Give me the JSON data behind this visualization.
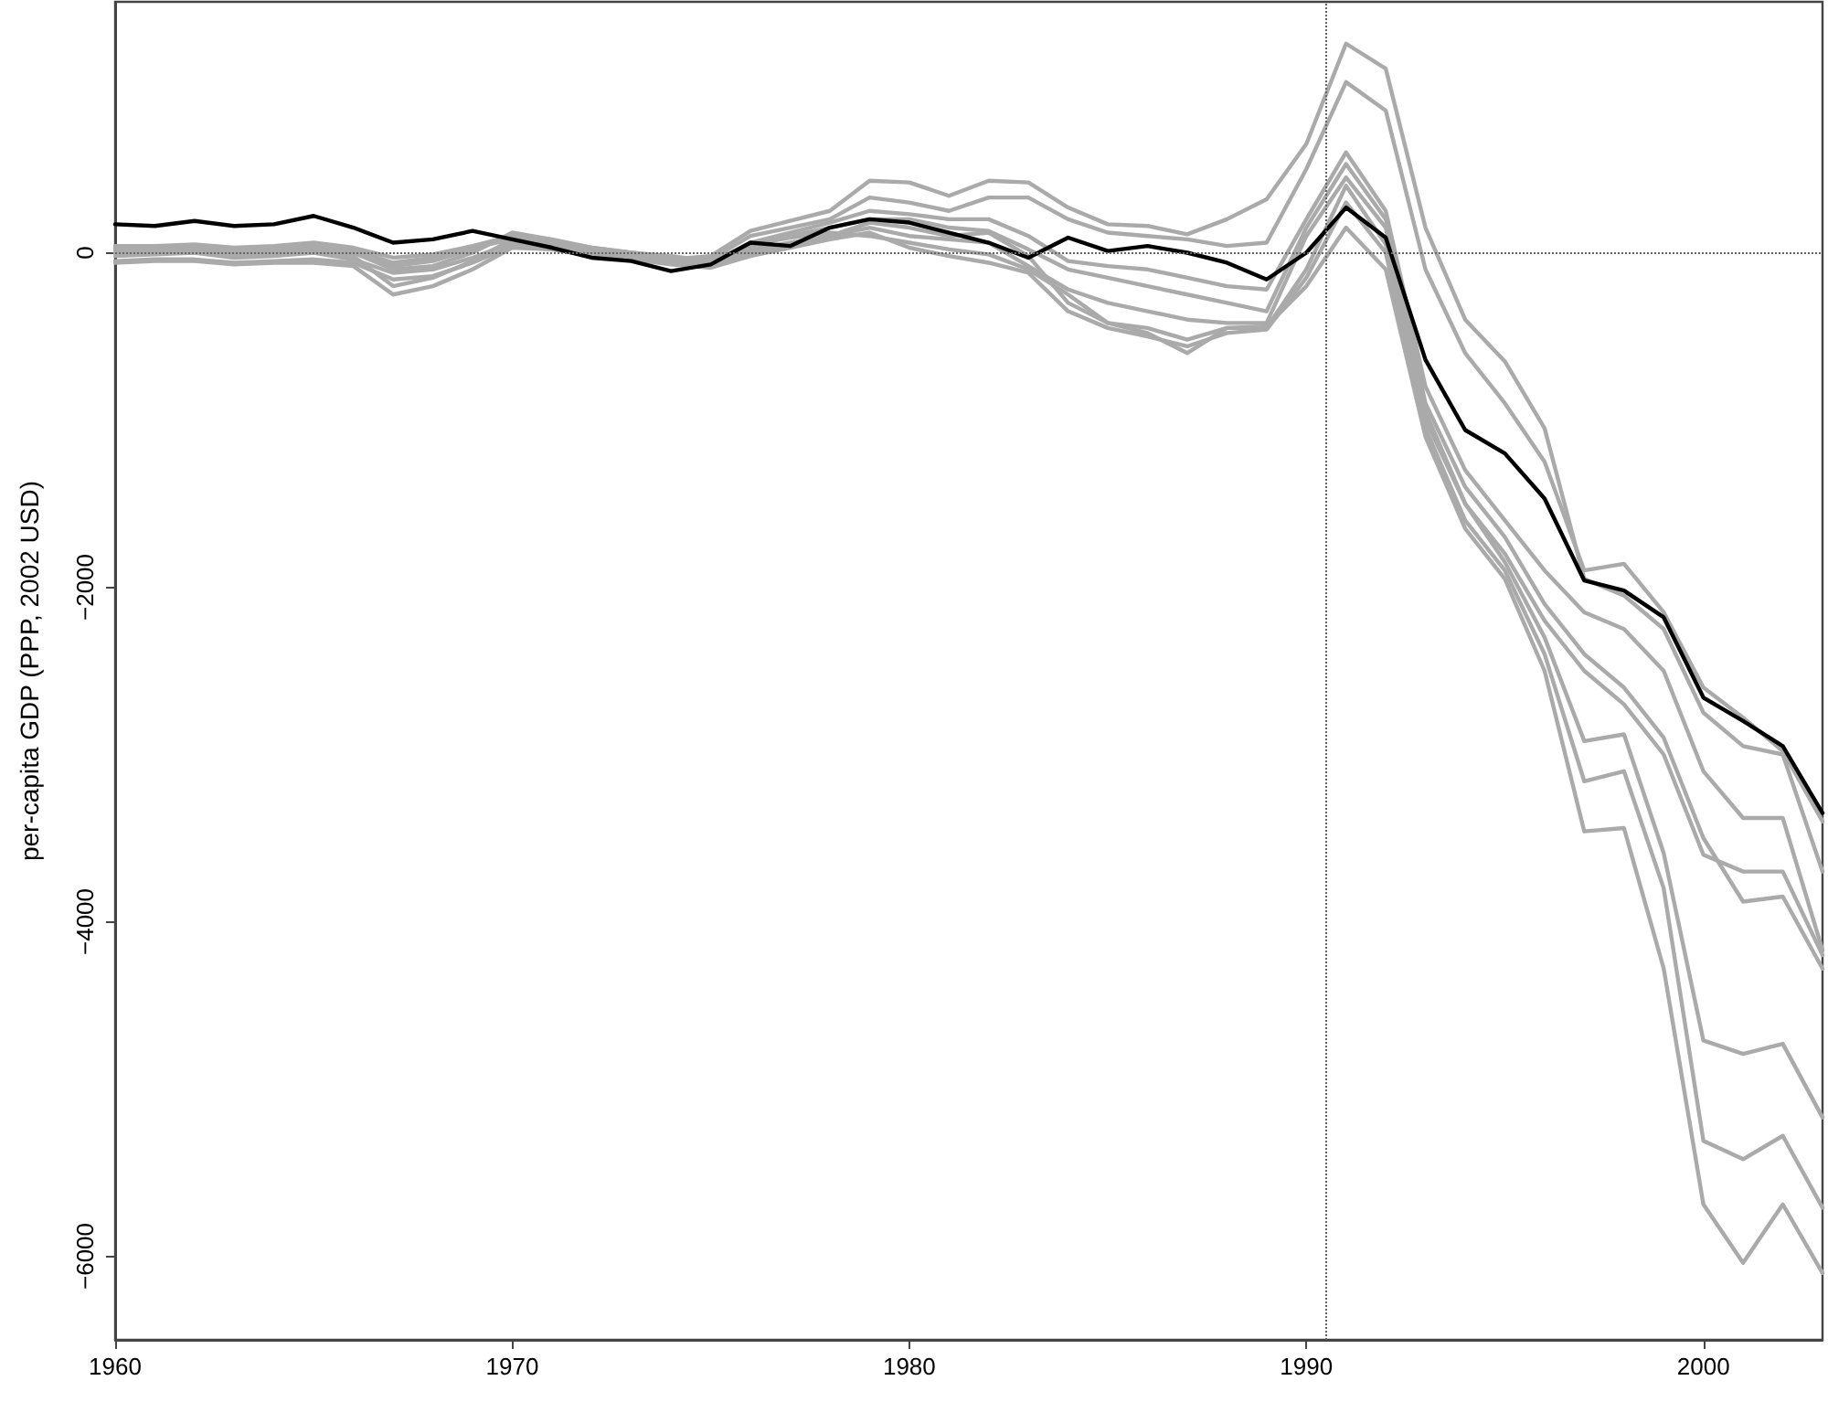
{
  "chart_data": {
    "type": "line",
    "ylabel": "per-capita GDP (PPP, 2002 USD)",
    "xlim": [
      1960,
      2003
    ],
    "xticks": [
      1960,
      1970,
      1980,
      1990,
      2000
    ],
    "ylim": [
      -6500,
      1500
    ],
    "yticks": [
      {
        "value": -6000,
        "label": "−6000"
      },
      {
        "value": -4000,
        "label": "−4000"
      },
      {
        "value": -2000,
        "label": "−2000"
      },
      0
    ],
    "grid": false,
    "marker": "none",
    "line_style": "solid",
    "x": [
      1960,
      1961,
      1962,
      1963,
      1964,
      1965,
      1966,
      1967,
      1968,
      1969,
      1970,
      1971,
      1972,
      1973,
      1974,
      1975,
      1976,
      1977,
      1978,
      1979,
      1980,
      1981,
      1982,
      1983,
      1984,
      1985,
      1986,
      1987,
      1988,
      1989,
      1990,
      1991,
      1992,
      1993,
      1994,
      1995,
      1996,
      1997,
      1998,
      1999,
      2000,
      2001,
      2002,
      2003
    ],
    "ref_lines": [
      {
        "axis": "x",
        "value": 1990.5,
        "color": "#666666",
        "line_style": "dotted"
      },
      {
        "axis": "y",
        "value": 0,
        "color": "#666666",
        "line_style": "dotted"
      }
    ],
    "series": [
      {
        "color": "#aaaaaa",
        "values": [
          30,
          30,
          40,
          20,
          30,
          50,
          20,
          -60,
          -30,
          30,
          80,
          60,
          20,
          0,
          -40,
          -20,
          130,
          190,
          250,
          430,
          420,
          340,
          430,
          420,
          270,
          170,
          160,
          110,
          200,
          320,
          650,
          1250,
          1100,
          150,
          -400,
          -650,
          -1050,
          -1950,
          -2050,
          -2250,
          -2750,
          -2950,
          -3000,
          -3700
        ]
      },
      {
        "color": "#aaaaaa",
        "values": [
          0,
          10,
          20,
          0,
          10,
          20,
          0,
          -80,
          -50,
          20,
          100,
          60,
          10,
          -10,
          -30,
          -40,
          100,
          150,
          200,
          330,
          300,
          250,
          330,
          330,
          200,
          120,
          100,
          80,
          40,
          60,
          500,
          1020,
          850,
          -100,
          -600,
          -900,
          -1250,
          -1900,
          -1860,
          -2150,
          -2600,
          -2780,
          -2980,
          -3400
        ]
      },
      {
        "color": "#aaaaaa",
        "values": [
          -20,
          -10,
          0,
          -30,
          -20,
          0,
          -40,
          -120,
          -100,
          -30,
          60,
          40,
          0,
          -20,
          -40,
          -60,
          60,
          120,
          180,
          250,
          230,
          200,
          200,
          100,
          -50,
          -80,
          -100,
          -150,
          -200,
          -220,
          200,
          600,
          250,
          -800,
          -1300,
          -1600,
          -1900,
          -2150,
          -2250,
          -2500,
          -3100,
          -3380,
          -3380,
          -4170
        ]
      },
      {
        "color": "#aaaaaa",
        "values": [
          40,
          40,
          50,
          30,
          40,
          60,
          30,
          -30,
          -10,
          40,
          100,
          70,
          30,
          0,
          -30,
          -60,
          40,
          100,
          150,
          200,
          200,
          150,
          130,
          20,
          -100,
          -150,
          -200,
          -250,
          -300,
          -350,
          150,
          530,
          200,
          -900,
          -1400,
          -1700,
          -2100,
          -2400,
          -2600,
          -2900,
          -3500,
          -3880,
          -3850,
          -4280
        ]
      },
      {
        "color": "#aaaaaa",
        "values": [
          -50,
          -40,
          -40,
          -60,
          -50,
          -40,
          -60,
          -160,
          -140,
          -60,
          40,
          20,
          -10,
          -30,
          -50,
          -70,
          20,
          60,
          100,
          150,
          100,
          80,
          60,
          -80,
          -220,
          -300,
          -350,
          -400,
          -420,
          -420,
          100,
          450,
          150,
          -950,
          -1500,
          -1800,
          -2200,
          -2500,
          -2700,
          -3000,
          -3600,
          -3700,
          -3700,
          -4200
        ]
      },
      {
        "color": "#aaaaaa",
        "values": [
          0,
          10,
          10,
          -20,
          -10,
          10,
          -20,
          -200,
          -150,
          -50,
          80,
          50,
          0,
          -30,
          -50,
          -80,
          0,
          50,
          100,
          180,
          150,
          100,
          120,
          -20,
          -300,
          -420,
          -450,
          -520,
          -450,
          -450,
          -100,
          400,
          50,
          -1000,
          -1500,
          -1850,
          -2300,
          -2920,
          -2880,
          -3590,
          -4710,
          -4790,
          -4730,
          -5170
        ]
      },
      {
        "color": "#aaaaaa",
        "values": [
          -60,
          -50,
          -50,
          -70,
          -60,
          -60,
          -80,
          -250,
          -200,
          -100,
          30,
          20,
          -20,
          -40,
          -70,
          -90,
          -20,
          30,
          80,
          120,
          30,
          -20,
          -60,
          -120,
          -350,
          -450,
          -500,
          -560,
          -480,
          -460,
          -150,
          300,
          0,
          -1050,
          -1600,
          -1900,
          -2400,
          -3160,
          -3100,
          -3800,
          -5310,
          -5420,
          -5280,
          -5710
        ]
      },
      {
        "color": "#aaaaaa",
        "values": [
          20,
          20,
          30,
          10,
          20,
          30,
          0,
          -100,
          -80,
          0,
          120,
          80,
          30,
          0,
          -20,
          -50,
          50,
          90,
          120,
          100,
          60,
          20,
          -10,
          -100,
          -250,
          -420,
          -480,
          -600,
          -450,
          -440,
          -200,
          150,
          -100,
          -1100,
          -1650,
          -1950,
          -2500,
          -3460,
          -3440,
          -4280,
          -5690,
          -6040,
          -5690,
          -6100
        ]
      },
      {
        "color": "#000000",
        "values": [
          170,
          160,
          190,
          160,
          170,
          220,
          150,
          60,
          80,
          130,
          80,
          30,
          -30,
          -50,
          -110,
          -70,
          60,
          40,
          150,
          200,
          180,
          120,
          60,
          -30,
          90,
          10,
          40,
          0,
          -60,
          -160,
          0,
          270,
          90,
          -640,
          -1060,
          -1200,
          -1470,
          -1960,
          -2020,
          -2180,
          -2660,
          -2800,
          -2950,
          -3350
        ]
      }
    ]
  }
}
